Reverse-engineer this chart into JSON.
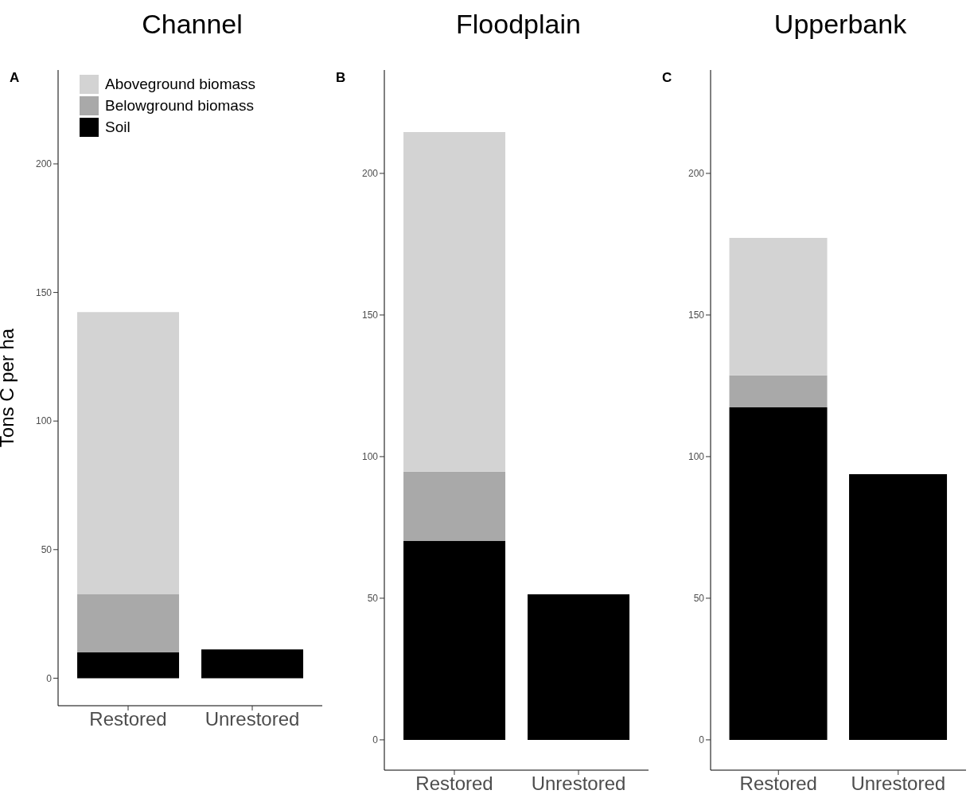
{
  "chart_data": [
    {
      "type": "bar",
      "title": "Channel",
      "ylabel": "Tons C per ha",
      "annotations": [
        "A"
      ],
      "categories": [
        "Restored",
        "Unrestored"
      ],
      "stacked": true,
      "legend": "top left",
      "ylim": [
        -10.7,
        236.5
      ],
      "yticks": [
        0,
        50,
        100,
        150,
        200
      ],
      "grid": false,
      "series": [
        {
          "name": "Soil",
          "color": "#000000",
          "values": [
            10,
            11.2
          ]
        },
        {
          "name": "Belowground biomass",
          "color": "#a9a9a9",
          "values": [
            22.6,
            null
          ]
        },
        {
          "name": "Aboveground biomass",
          "color": "#d3d3d3",
          "values": [
            109.8,
            null
          ]
        }
      ]
    },
    {
      "type": "bar",
      "title": "Floodplain",
      "annotations": [
        "B"
      ],
      "categories": [
        "Restored",
        "Unrestored"
      ],
      "stacked": true,
      "legend": false,
      "ylim": [
        -10.7,
        236.5
      ],
      "yticks": [
        0,
        50,
        100,
        150,
        200
      ],
      "grid": false,
      "series": [
        {
          "color": "#000000",
          "values": [
            70.2,
            51.4
          ]
        },
        {
          "color": "#a9a9a9",
          "values": [
            24.5,
            null
          ]
        },
        {
          "color": "#d3d3d3",
          "values": [
            119.9,
            null
          ]
        }
      ]
    },
    {
      "type": "bar",
      "title": "Upperbank",
      "annotations": [
        "C"
      ],
      "categories": [
        "Restored",
        "Unrestored"
      ],
      "stacked": true,
      "legend": false,
      "ylim": [
        -10.7,
        236.5
      ],
      "yticks": [
        0,
        50,
        100,
        150,
        200
      ],
      "grid": false,
      "series": [
        {
          "color": "#000000",
          "values": [
            117.4,
            93.8
          ]
        },
        {
          "color": "#a9a9a9",
          "values": [
            11.3,
            null
          ]
        },
        {
          "color": "#d3d3d3",
          "values": [
            48.5,
            null
          ]
        }
      ]
    }
  ]
}
